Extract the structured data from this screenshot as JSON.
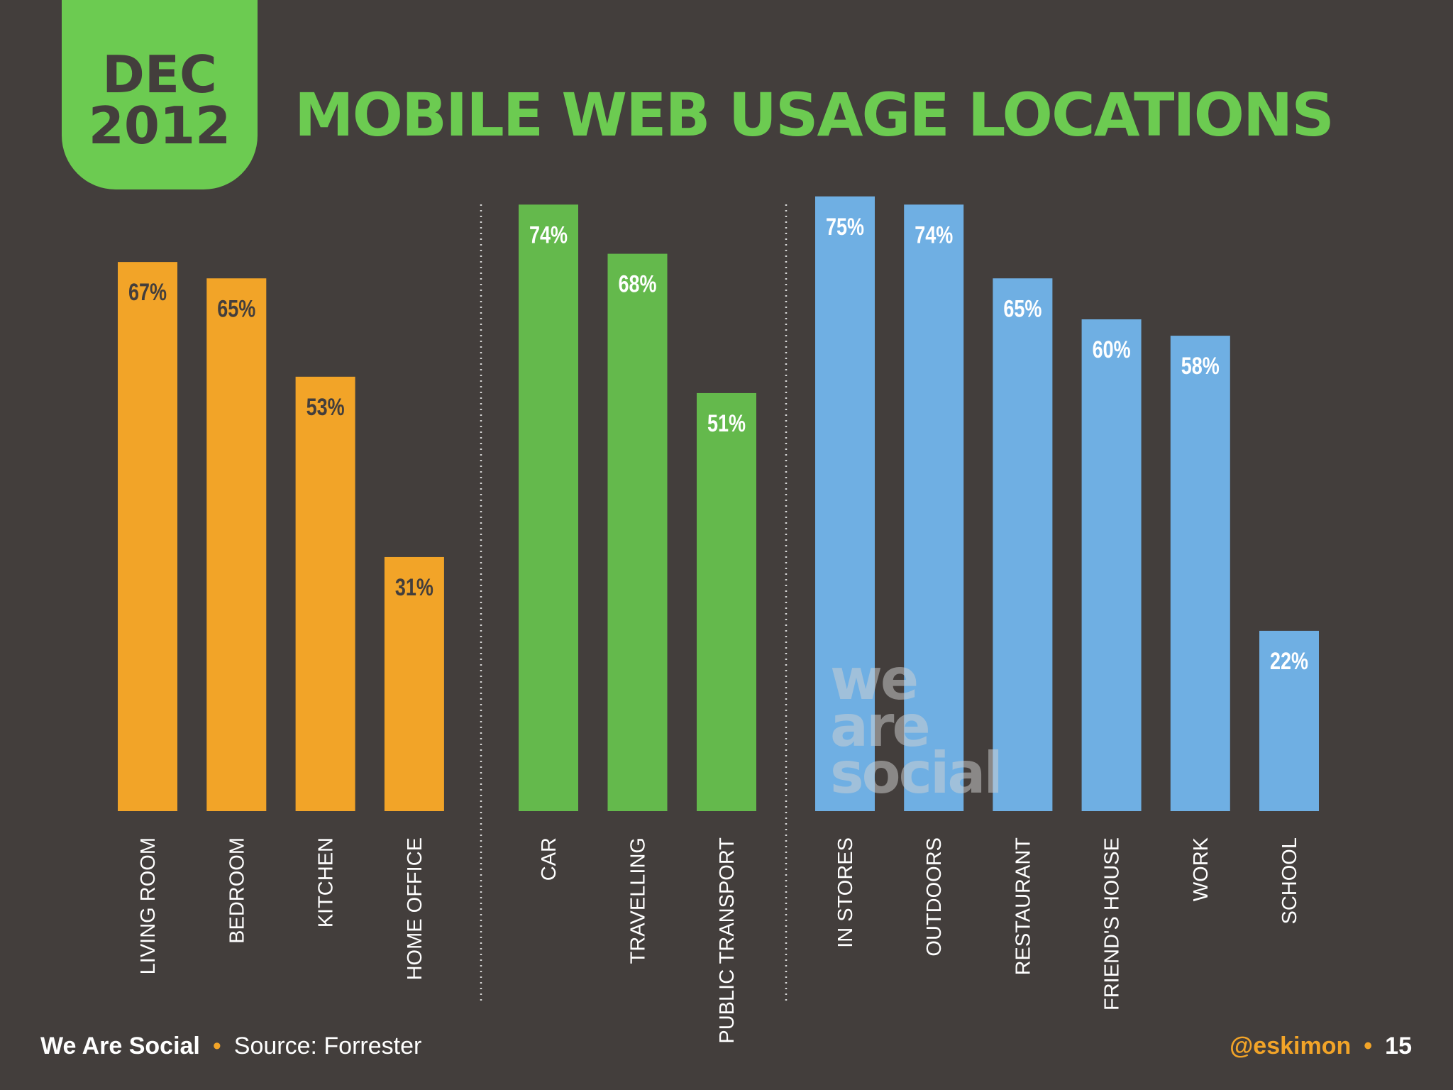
{
  "badge": {
    "month": "DEC",
    "year": "2012"
  },
  "title": "MOBILE WEB USAGE LOCATIONS",
  "watermark": [
    "we",
    "are",
    "social"
  ],
  "footer": {
    "brand": "We Are Social",
    "separator": "•",
    "source": "Source: Forrester",
    "handle": "@eskimon",
    "page": "15"
  },
  "colors": {
    "background": "#433e3c",
    "orange": "#f2a428",
    "green": "#64b94c",
    "blue": "#6fafe3",
    "title_green": "#6ccb51"
  },
  "chart_data": {
    "type": "bar",
    "y_unit": "%",
    "ylim": [
      0,
      100
    ],
    "grid": false,
    "groups": [
      {
        "color": "orange",
        "categories": [
          "LIVING ROOM",
          "BEDROOM",
          "KITCHEN",
          "HOME OFFICE"
        ],
        "values": [
          67,
          65,
          53,
          31
        ],
        "labels": [
          "67%",
          "65%",
          "53%",
          "31%"
        ]
      },
      {
        "color": "green",
        "categories": [
          "CAR",
          "TRAVELLING",
          "PUBLIC TRANSPORT"
        ],
        "values": [
          74,
          68,
          51
        ],
        "labels": [
          "74%",
          "68%",
          "51%"
        ]
      },
      {
        "color": "blue",
        "categories": [
          "IN STORES",
          "OUTDOORS",
          "RESTAURANT",
          "FRIEND'S HOUSE",
          "WORK",
          "SCHOOL"
        ],
        "values": [
          75,
          74,
          65,
          60,
          58,
          22
        ],
        "labels": [
          "75%",
          "74%",
          "65%",
          "60%",
          "58%",
          "22%"
        ]
      }
    ]
  }
}
